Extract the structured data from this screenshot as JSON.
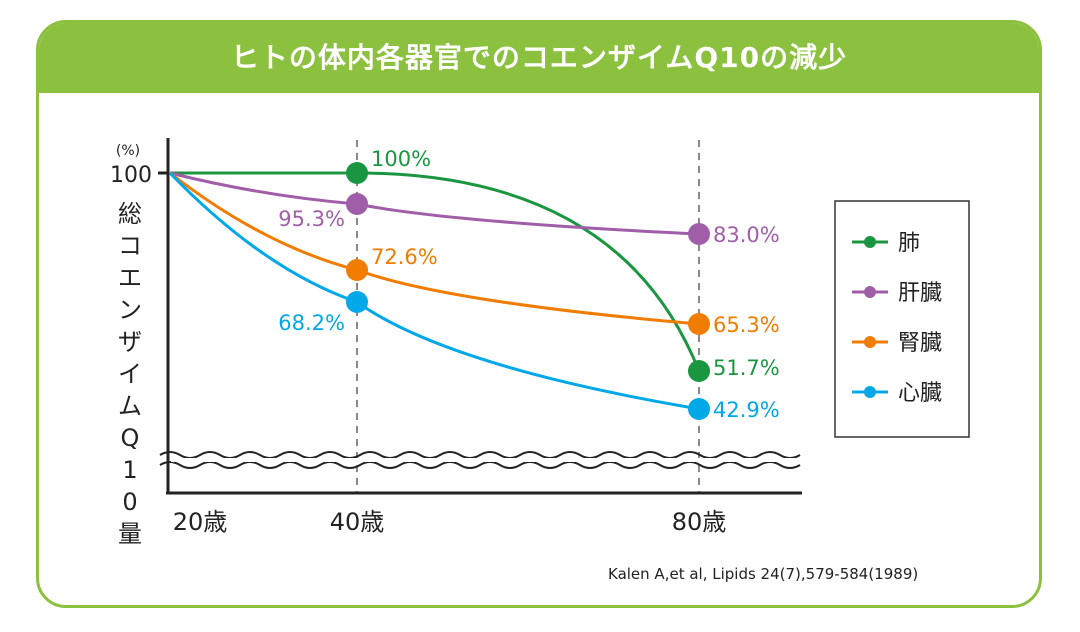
{
  "chart_data": {
    "type": "line",
    "title": "ヒトの体内各器官でのコエンザイムQ10の減少",
    "ylabel": "総コエンザイムQ10量",
    "yunit": "(%)",
    "ytick": "100",
    "x": [
      "20歳",
      "40歳",
      "80歳"
    ],
    "x_values": [
      20,
      40,
      80
    ],
    "axis_break": true,
    "legend_position": "right",
    "series": [
      {
        "name": "肺",
        "color": "#1a9641",
        "values": [
          100,
          100,
          51.7
        ],
        "labels": [
          "",
          "100%",
          "51.7%"
        ]
      },
      {
        "name": "肝臓",
        "color": "#a05ea8",
        "values": [
          100,
          95.3,
          83.0
        ],
        "labels": [
          "",
          "95.3%",
          "83.0%"
        ]
      },
      {
        "name": "腎臓",
        "color": "#f07c00",
        "values": [
          100,
          72.6,
          65.3
        ],
        "labels": [
          "",
          "72.6%",
          "65.3%"
        ]
      },
      {
        "name": "心臓",
        "color": "#00a8e8",
        "values": [
          100,
          68.2,
          42.9
        ],
        "labels": [
          "",
          "68.2%",
          "42.9%"
        ]
      }
    ],
    "source": "Kalen A,et al, Lipids 24(7),579-584(1989)"
  }
}
